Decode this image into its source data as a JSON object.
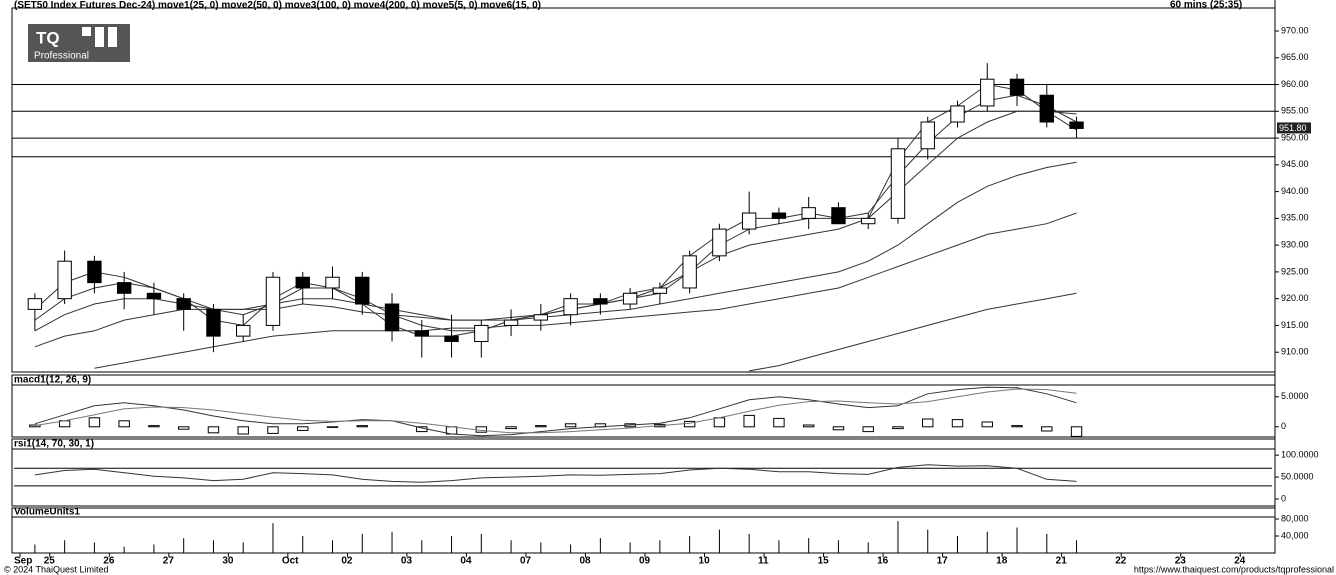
{
  "header": {
    "instrument": "(SET50 Index Futures Dec-24)",
    "interval": "60 mins (25:35)",
    "logo": "TQ",
    "logo_sub": "Professional"
  },
  "footer": {
    "copyright": "© 2024 ThaiQuest Limited",
    "url": "https://www.thaiquest.com/products/tqprofessional"
  },
  "chart_data": [
    {
      "type": "candlestick",
      "x": [
        0,
        1,
        2,
        3,
        4,
        5,
        6,
        7,
        8,
        9,
        10,
        11,
        12,
        13,
        14,
        15,
        16,
        17,
        18,
        19,
        20,
        21,
        22,
        23,
        24,
        25,
        26,
        27,
        28,
        29,
        30,
        31,
        32,
        33,
        34,
        35
      ],
      "open": [
        918,
        920,
        927,
        923,
        921,
        920,
        918,
        913,
        915,
        924,
        922,
        924,
        919,
        914,
        913,
        912,
        915,
        916,
        917,
        920,
        919,
        921,
        922,
        928,
        933,
        936,
        935,
        937,
        934,
        935,
        948,
        953,
        956,
        961,
        958,
        953
      ],
      "high": [
        921,
        929,
        928,
        925,
        923,
        921,
        919,
        917,
        925,
        925,
        926,
        925,
        921,
        916,
        917,
        916,
        918,
        919,
        921,
        921,
        922,
        923,
        929,
        934,
        940,
        937,
        939,
        938,
        936,
        950,
        954,
        957,
        964,
        962,
        960,
        954
      ],
      "low": [
        914,
        919,
        921,
        918,
        917,
        914,
        910,
        912,
        914,
        919,
        920,
        917,
        912,
        909,
        909,
        909,
        913,
        914,
        915,
        917,
        918,
        919,
        921,
        927,
        932,
        934,
        933,
        934,
        933,
        934,
        946,
        952,
        955,
        956,
        952,
        950
      ],
      "close": [
        920,
        927,
        923,
        921,
        920,
        918,
        913,
        915,
        924,
        922,
        924,
        919,
        914,
        913,
        912,
        915,
        916,
        917,
        920,
        919,
        921,
        922,
        928,
        933,
        936,
        935,
        937,
        934,
        935,
        948,
        953,
        956,
        961,
        958,
        953,
        951.8
      ],
      "series": [
        {
          "name": "move1(25, 0)",
          "color": "#333333",
          "values": [
            914,
            917,
            919,
            920,
            920,
            919,
            918,
            918,
            919,
            920,
            920,
            919,
            918,
            917,
            916,
            916,
            916.5,
            917,
            918,
            919,
            920,
            922,
            925,
            928,
            930,
            931,
            932,
            933,
            935,
            940,
            945,
            950,
            953,
            955,
            955,
            954.5
          ]
        },
        {
          "name": "move2(50, 0)",
          "color": "#333333",
          "values": [
            911,
            913,
            914,
            916,
            917,
            918,
            918,
            918,
            918,
            919,
            918.5,
            917.5,
            917,
            916.5,
            916,
            916,
            916,
            916.5,
            917,
            917.5,
            918,
            919,
            920,
            921,
            922,
            923,
            924,
            925,
            927,
            930,
            934,
            938,
            941,
            943,
            944.5,
            945.5
          ]
        },
        {
          "name": "move3(100, 0)",
          "color": "#333333",
          "values": [
            null,
            null,
            907,
            908,
            909,
            910,
            911,
            912,
            913,
            913.5,
            914,
            914,
            914,
            914,
            914.5,
            914.5,
            915,
            915,
            915.5,
            916,
            916.5,
            917,
            917.5,
            918,
            919,
            920,
            921,
            922,
            924,
            926,
            928,
            930,
            932,
            933,
            934,
            936
          ]
        },
        {
          "name": "move4(200, 0)",
          "color": "#333333",
          "values": [
            null,
            null,
            null,
            null,
            null,
            null,
            null,
            null,
            null,
            null,
            null,
            null,
            null,
            null,
            null,
            null,
            null,
            null,
            null,
            null,
            null,
            null,
            null,
            null,
            906.5,
            907.5,
            909,
            910.5,
            912,
            913.5,
            915,
            916.5,
            918,
            919,
            920,
            921
          ]
        },
        {
          "name": "move5(5, 0)",
          "color": "#333333",
          "values": [
            918,
            923,
            925,
            924,
            922,
            920,
            916,
            915,
            920,
            923,
            922,
            919,
            915,
            913,
            913,
            914,
            916,
            917,
            919,
            919,
            921,
            922,
            928,
            932,
            935,
            935,
            936,
            935,
            935,
            946,
            953,
            956,
            960,
            959,
            955,
            951.5
          ]
        },
        {
          "name": "move6(15, 0)",
          "color": "#333333",
          "values": [
            916,
            920,
            922,
            923,
            922,
            920,
            918,
            917,
            919,
            922,
            922,
            920,
            917,
            915,
            914,
            914,
            916,
            917,
            918,
            919,
            920,
            921,
            925,
            930,
            933,
            934,
            935,
            935,
            936,
            943,
            949,
            954,
            957,
            958,
            956,
            953
          ]
        }
      ],
      "hlines": [
        960,
        955,
        950,
        946.5
      ],
      "last_price": {
        "value": 951.8,
        "label": "951.80"
      },
      "ylim": [
        906.3,
        974.3
      ],
      "yticks": [
        {
          "value": 910,
          "label": "910.00"
        },
        {
          "value": 915,
          "label": "915.00"
        },
        {
          "value": 920,
          "label": "920.00"
        },
        {
          "value": 925,
          "label": "925.00"
        },
        {
          "value": 930,
          "label": "930.00"
        },
        {
          "value": 935,
          "label": "935.00"
        },
        {
          "value": 940,
          "label": "940.00"
        },
        {
          "value": 945,
          "label": "945.00"
        },
        {
          "value": 950,
          "label": "950.00"
        },
        {
          "value": 955,
          "label": "955.00"
        },
        {
          "value": 960,
          "label": "960.00"
        },
        {
          "value": 965,
          "label": "965.00"
        },
        {
          "value": 970,
          "label": "970.00"
        }
      ]
    },
    {
      "type": "macd",
      "title": "macd1(12, 26, 9)",
      "series": [
        {
          "color": "#333333",
          "values": [
            0.5,
            2,
            3.5,
            4,
            3.5,
            2.8,
            1.8,
            1,
            0.5,
            0.5,
            0.8,
            1.2,
            1,
            -0.2,
            -1.2,
            -1.5,
            -1.3,
            -0.8,
            -0.3,
            0,
            0.3,
            0.6,
            1.5,
            3,
            4.5,
            5,
            4.5,
            3.8,
            3.2,
            3.5,
            5.5,
            6.2,
            6.6,
            6.5,
            5.5,
            4
          ]
        },
        {
          "color": "#777777",
          "values": [
            0.2,
            1,
            2,
            3,
            3.3,
            3.2,
            2.8,
            2.2,
            1.6,
            1.1,
            0.9,
            1,
            1,
            0.6,
            0,
            -0.6,
            -1,
            -1,
            -0.8,
            -0.5,
            -0.2,
            0.2,
            0.6,
            1.5,
            2.6,
            3.6,
            4.2,
            4.3,
            4,
            3.8,
            4.2,
            5,
            5.8,
            6.3,
            6.2,
            5.6
          ]
        }
      ],
      "histogram": [
        0.3,
        1,
        1.5,
        1,
        0.2,
        -0.4,
        -1,
        -1.2,
        -1.1,
        -0.6,
        -0.1,
        0.2,
        0,
        -0.8,
        -1.2,
        -0.9,
        -0.3,
        0.2,
        0.5,
        0.5,
        0.5,
        0.4,
        0.9,
        1.5,
        1.9,
        1.4,
        0.3,
        -0.5,
        -0.8,
        -0.3,
        1.3,
        1.2,
        0.8,
        0.2,
        -0.7,
        -1.6
      ],
      "ylim": [
        -1.7,
        6.8
      ],
      "yticks": [
        0,
        {
          "value": 5,
          "label": "5.0000"
        }
      ]
    },
    {
      "type": "rsi",
      "title": "rsi1(14, 70, 30, 1)",
      "values": [
        55,
        65,
        68,
        60,
        52,
        48,
        42,
        45,
        60,
        58,
        55,
        45,
        40,
        38,
        42,
        48,
        50,
        52,
        55,
        54,
        56,
        58,
        66,
        70,
        68,
        62,
        62,
        58,
        56,
        72,
        78,
        75,
        76,
        70,
        45,
        40
      ],
      "bands": [
        70,
        30
      ],
      "ylim": [
        -16,
        114
      ],
      "yticks": [
        0,
        {
          "value": 50,
          "label": "50.0000"
        },
        {
          "value": 100,
          "label": "100.0000"
        }
      ]
    },
    {
      "type": "volume",
      "title": "VolumeUnits1",
      "values": [
        20000,
        30000,
        25000,
        15000,
        20000,
        35000,
        30000,
        25000,
        70000,
        40000,
        30000,
        45000,
        50000,
        30000,
        40000,
        45000,
        30000,
        25000,
        20000,
        35000,
        25000,
        30000,
        40000,
        55000,
        45000,
        30000,
        35000,
        30000,
        25000,
        75000,
        55000,
        40000,
        50000,
        60000,
        45000,
        30000
      ],
      "ylim": [
        0,
        84700
      ],
      "yticks": [
        {
          "value": 40000,
          "label": "40,000"
        },
        {
          "value": 80000,
          "label": "80,000"
        }
      ],
      "xlim": [
        -0.5,
        41.5
      ],
      "xticks": [
        {
          "value": -0.5,
          "label": "Sep"
        },
        {
          "value": 0.5,
          "label": "25"
        },
        {
          "value": 2.5,
          "label": "26"
        },
        {
          "value": 4.5,
          "label": "27"
        },
        {
          "value": 6.5,
          "label": "30"
        },
        {
          "value": 8.5,
          "label": "Oct"
        },
        {
          "value": 10.5,
          "label": "02"
        },
        {
          "value": 12.5,
          "label": "03"
        },
        {
          "value": 14.5,
          "label": "04"
        },
        {
          "value": 16.5,
          "label": "07"
        },
        {
          "value": 18.5,
          "label": "08"
        },
        {
          "value": 20.5,
          "label": "09"
        },
        {
          "value": 22.5,
          "label": "10"
        },
        {
          "value": 24.5,
          "label": "11"
        },
        {
          "value": 26.5,
          "label": "15"
        },
        {
          "value": 28.5,
          "label": "16"
        },
        {
          "value": 30.5,
          "label": "17"
        },
        {
          "value": 32.5,
          "label": "18"
        },
        {
          "value": 34.5,
          "label": "21"
        },
        {
          "value": 36.5,
          "label": "22"
        },
        {
          "value": 38.5,
          "label": "23"
        },
        {
          "value": 40.5,
          "label": "24"
        }
      ]
    }
  ]
}
